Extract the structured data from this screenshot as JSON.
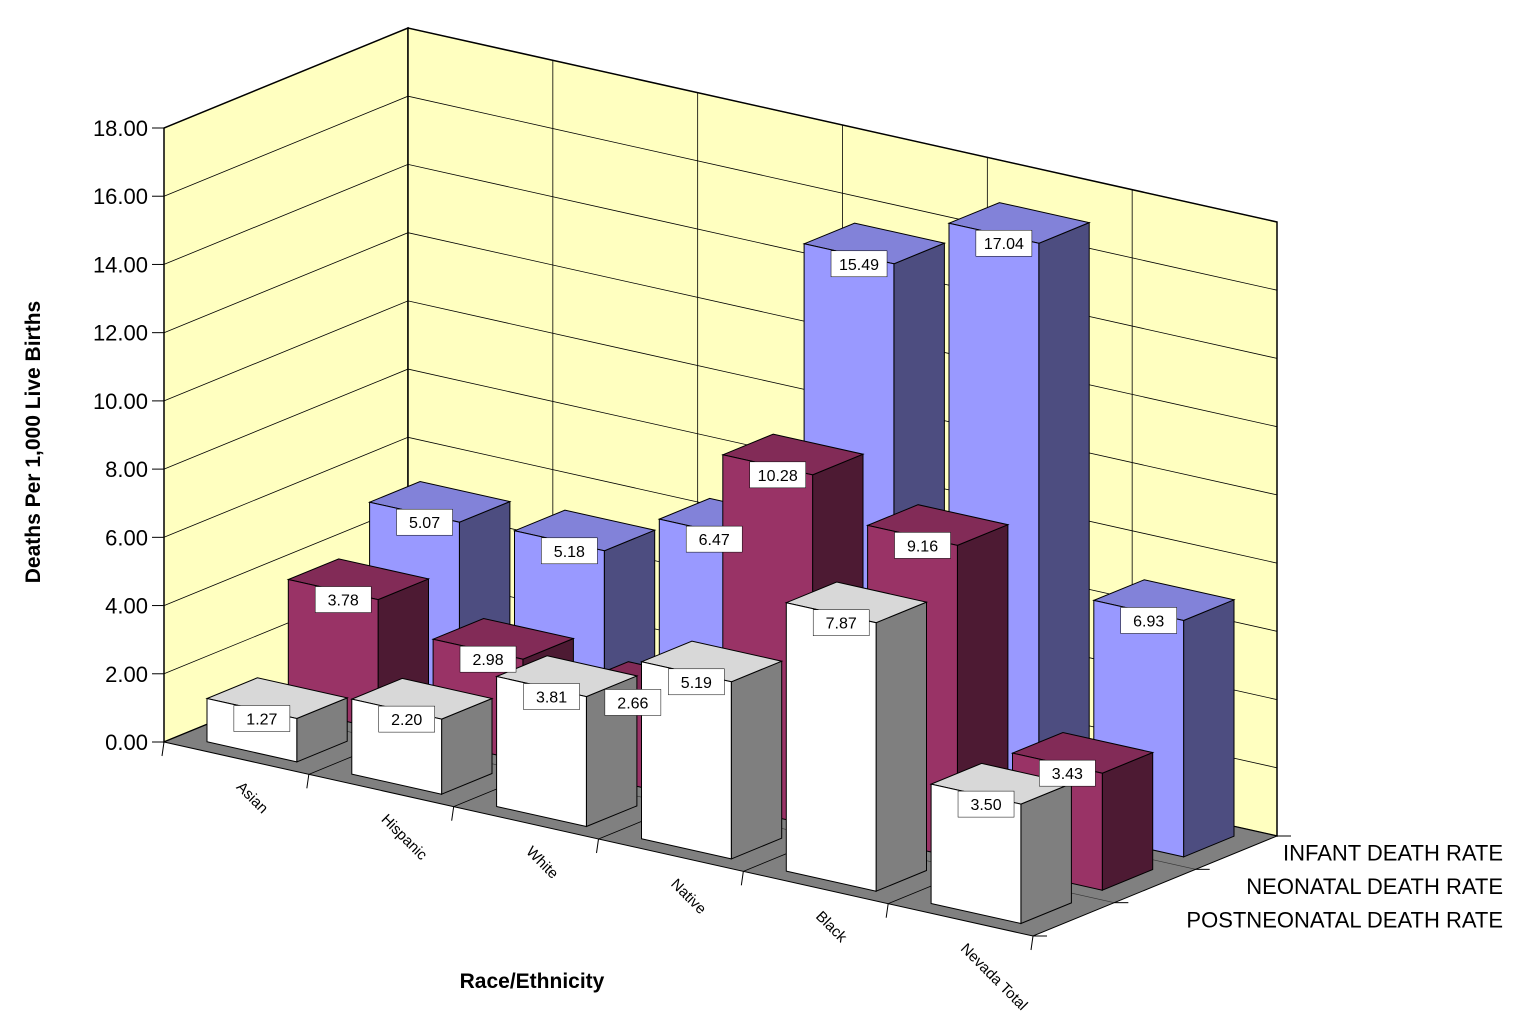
{
  "chart_data": {
    "type": "bar",
    "title": "",
    "xlabel": "Race/Ethnicity",
    "ylabel": "Deaths Per 1,000 Live Births",
    "ylim": [
      0,
      18
    ],
    "ytick_labels": [
      "0.00",
      "2.00",
      "4.00",
      "6.00",
      "8.00",
      "10.00",
      "12.00",
      "14.00",
      "16.00",
      "18.00"
    ],
    "categories": [
      "Asian",
      "Hispanic",
      "White",
      "Native",
      "Black",
      "Nevada Total"
    ],
    "series": [
      {
        "name": "INFANT DEATH RATE",
        "values": [
          5.07,
          5.18,
          6.47,
          15.49,
          17.04,
          6.93
        ],
        "labels": [
          "5.07",
          "5.18",
          "6.47",
          "15.49",
          "17.04",
          "6.93"
        ],
        "color": "#9999ff"
      },
      {
        "name": "NEONATAL DEATH RATE",
        "values": [
          3.78,
          2.98,
          2.66,
          10.28,
          9.16,
          3.43
        ],
        "labels": [
          "3.78",
          "2.98",
          "2.66",
          "10.28",
          "9.16",
          "3.43"
        ],
        "color": "#993366"
      },
      {
        "name": "POSTNEONATAL DEATH RATE",
        "values": [
          1.27,
          2.2,
          3.81,
          5.19,
          7.87,
          3.5
        ],
        "labels": [
          "1.27",
          "2.20",
          "3.81",
          "5.19",
          "7.87",
          "3.50"
        ],
        "color": "#ffffff"
      }
    ],
    "grid": true,
    "wall_color": "#ffffc0",
    "floor_color": "#808080",
    "style": "3d-column"
  }
}
